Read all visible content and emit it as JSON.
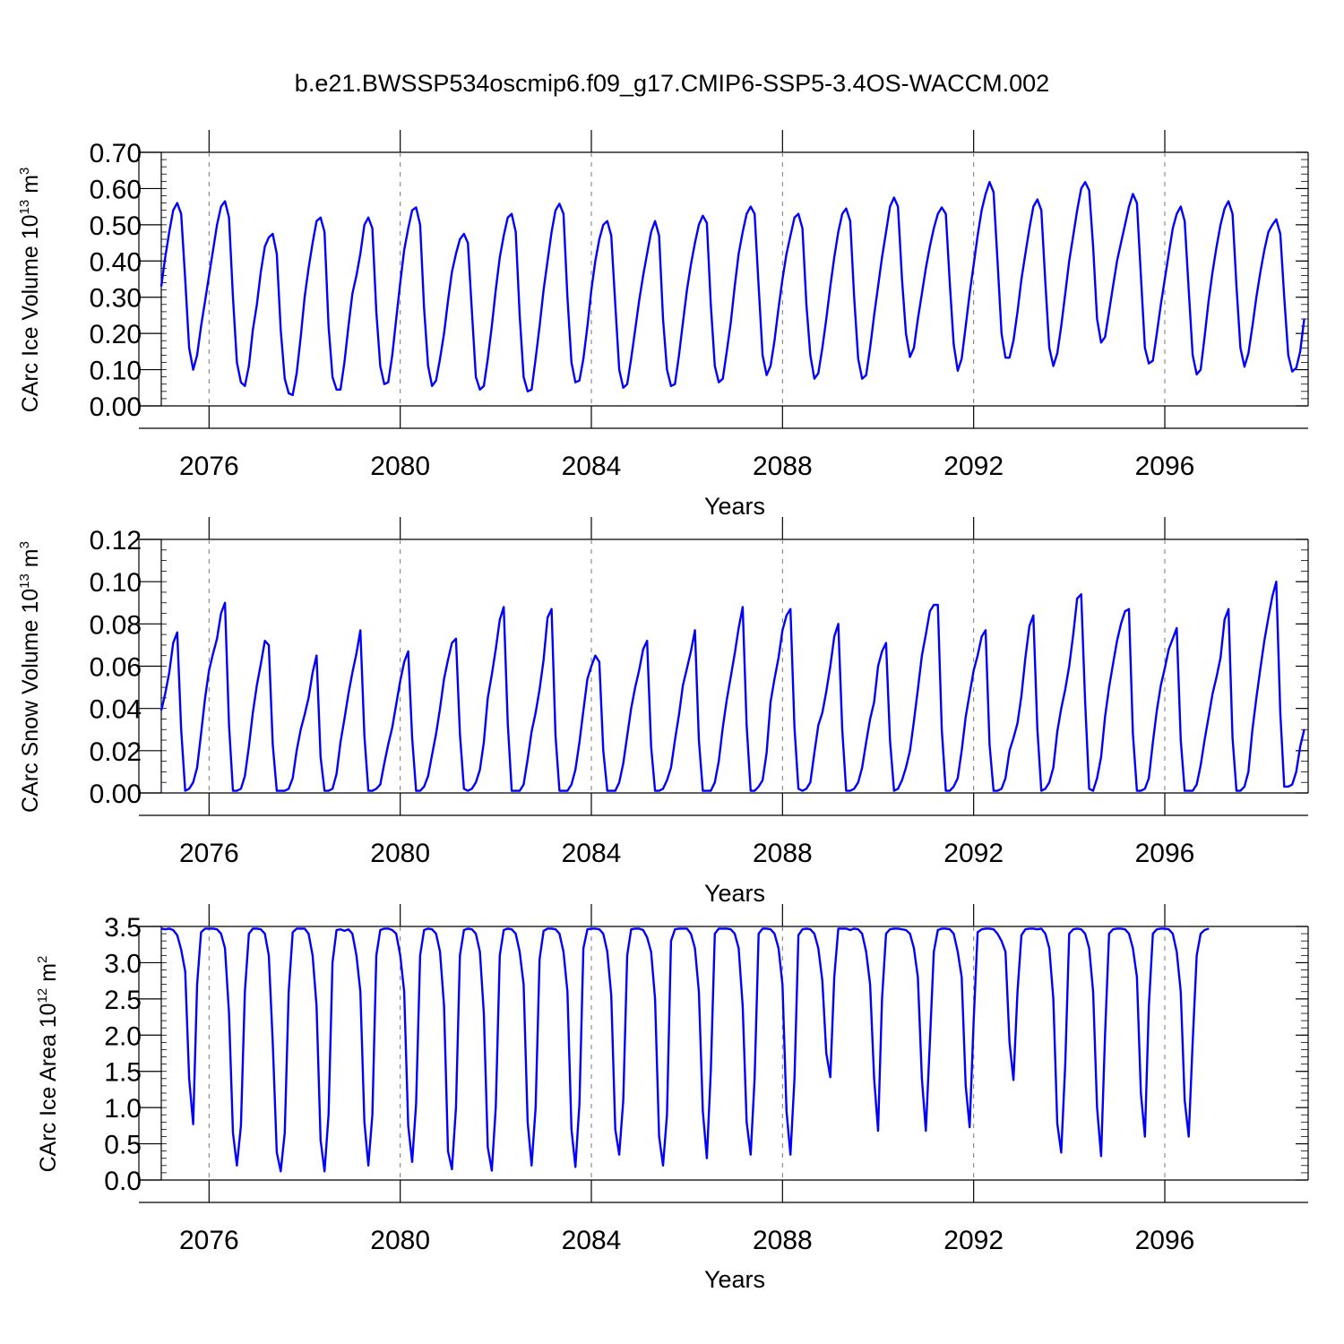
{
  "title": "b.e21.BWSSP534oscmip6.f09_g17.CMIP6-SSP5-3.4OS-WACCM.002",
  "chart_data": [
    {
      "type": "line",
      "ylabel": {
        "main": "CArc Ice Volume 10",
        "exp": "13",
        "unit": " m",
        "unit_exp": "3"
      },
      "xlabel": "Years",
      "xlim": [
        2075,
        2099
      ],
      "ylim": [
        0,
        0.7
      ],
      "x_ticks": [
        "2076",
        "2080",
        "2084",
        "2088",
        "2092",
        "2096"
      ],
      "y_ticks": [
        "0.00",
        "0.10",
        "0.20",
        "0.30",
        "0.40",
        "0.50",
        "0.60",
        "0.70"
      ],
      "x_tick_values": [
        2076,
        2080,
        2084,
        2088,
        2092,
        2096
      ],
      "y_tick_values": [
        0,
        0.1,
        0.2,
        0.3,
        0.4,
        0.5,
        0.6,
        0.7
      ],
      "minor_y_step": 0.02,
      "grid": "vertical dashed at major x ticks",
      "line_color": "#0000ff",
      "series": [
        {
          "x_start": 2075.0,
          "x_step": 0.0833333,
          "values": [
            0.33,
            0.41,
            0.48,
            0.54,
            0.56,
            0.53,
            0.35,
            0.16,
            0.1,
            0.14,
            0.22,
            0.29,
            0.36,
            0.43,
            0.5,
            0.55,
            0.565,
            0.52,
            0.3,
            0.12,
            0.065,
            0.055,
            0.11,
            0.21,
            0.28,
            0.37,
            0.44,
            0.465,
            0.475,
            0.42,
            0.21,
            0.075,
            0.035,
            0.03,
            0.09,
            0.19,
            0.3,
            0.38,
            0.45,
            0.51,
            0.52,
            0.48,
            0.22,
            0.08,
            0.045,
            0.045,
            0.12,
            0.22,
            0.31,
            0.36,
            0.42,
            0.5,
            0.52,
            0.49,
            0.26,
            0.11,
            0.06,
            0.065,
            0.14,
            0.24,
            0.34,
            0.43,
            0.49,
            0.54,
            0.548,
            0.5,
            0.27,
            0.11,
            0.055,
            0.07,
            0.13,
            0.2,
            0.29,
            0.37,
            0.42,
            0.46,
            0.475,
            0.45,
            0.26,
            0.08,
            0.045,
            0.055,
            0.13,
            0.22,
            0.32,
            0.41,
            0.47,
            0.52,
            0.53,
            0.48,
            0.25,
            0.08,
            0.04,
            0.045,
            0.13,
            0.22,
            0.32,
            0.4,
            0.48,
            0.54,
            0.558,
            0.53,
            0.3,
            0.12,
            0.065,
            0.07,
            0.13,
            0.22,
            0.32,
            0.4,
            0.46,
            0.5,
            0.51,
            0.47,
            0.28,
            0.1,
            0.05,
            0.06,
            0.13,
            0.21,
            0.29,
            0.36,
            0.42,
            0.48,
            0.51,
            0.47,
            0.24,
            0.1,
            0.055,
            0.06,
            0.14,
            0.23,
            0.32,
            0.39,
            0.45,
            0.5,
            0.525,
            0.505,
            0.28,
            0.11,
            0.065,
            0.075,
            0.15,
            0.23,
            0.33,
            0.42,
            0.48,
            0.53,
            0.55,
            0.53,
            0.33,
            0.14,
            0.085,
            0.11,
            0.18,
            0.27,
            0.35,
            0.42,
            0.47,
            0.52,
            0.53,
            0.49,
            0.28,
            0.14,
            0.075,
            0.09,
            0.16,
            0.24,
            0.33,
            0.41,
            0.48,
            0.53,
            0.545,
            0.51,
            0.3,
            0.13,
            0.075,
            0.085,
            0.16,
            0.25,
            0.33,
            0.41,
            0.48,
            0.55,
            0.575,
            0.55,
            0.35,
            0.2,
            0.135,
            0.16,
            0.24,
            0.31,
            0.38,
            0.44,
            0.49,
            0.53,
            0.548,
            0.53,
            0.34,
            0.17,
            0.097,
            0.13,
            0.22,
            0.31,
            0.39,
            0.47,
            0.54,
            0.585,
            0.618,
            0.59,
            0.4,
            0.2,
            0.133,
            0.133,
            0.18,
            0.26,
            0.35,
            0.42,
            0.49,
            0.55,
            0.57,
            0.54,
            0.34,
            0.16,
            0.11,
            0.145,
            0.22,
            0.31,
            0.4,
            0.47,
            0.54,
            0.6,
            0.618,
            0.595,
            0.44,
            0.24,
            0.175,
            0.19,
            0.26,
            0.33,
            0.4,
            0.45,
            0.5,
            0.55,
            0.585,
            0.56,
            0.36,
            0.16,
            0.117,
            0.125,
            0.2,
            0.28,
            0.35,
            0.42,
            0.49,
            0.53,
            0.55,
            0.51,
            0.32,
            0.14,
            0.087,
            0.1,
            0.19,
            0.29,
            0.37,
            0.44,
            0.5,
            0.545,
            0.565,
            0.53,
            0.33,
            0.16,
            0.108,
            0.145,
            0.22,
            0.3,
            0.37,
            0.43,
            0.48,
            0.5,
            0.515,
            0.475,
            0.3,
            0.14,
            0.095,
            0.105,
            0.15,
            0.24
          ]
        }
      ]
    },
    {
      "type": "line",
      "ylabel": {
        "main": "CArc Snow Volume 10",
        "exp": "13",
        "unit": " m",
        "unit_exp": "3"
      },
      "xlabel": "Years",
      "xlim": [
        2075,
        2099
      ],
      "ylim": [
        0,
        0.12
      ],
      "x_ticks": [
        "2076",
        "2080",
        "2084",
        "2088",
        "2092",
        "2096"
      ],
      "y_ticks": [
        "0.00",
        "0.02",
        "0.04",
        "0.06",
        "0.08",
        "0.10",
        "0.12"
      ],
      "x_tick_values": [
        2076,
        2080,
        2084,
        2088,
        2092,
        2096
      ],
      "y_tick_values": [
        0,
        0.02,
        0.04,
        0.06,
        0.08,
        0.1,
        0.12
      ],
      "minor_y_step": 0.005,
      "grid": "vertical dashed at major x ticks",
      "line_color": "#0000ff",
      "series": [
        {
          "x_start": 2075.0,
          "x_step": 0.0833333,
          "values": [
            0.039,
            0.047,
            0.057,
            0.071,
            0.076,
            0.03,
            0.001,
            0.002,
            0.005,
            0.012,
            0.028,
            0.045,
            0.058,
            0.066,
            0.073,
            0.085,
            0.09,
            0.032,
            0.001,
            0.001,
            0.002,
            0.008,
            0.022,
            0.038,
            0.051,
            0.061,
            0.072,
            0.07,
            0.023,
            0.001,
            0.001,
            0.001,
            0.002,
            0.007,
            0.02,
            0.03,
            0.037,
            0.045,
            0.057,
            0.065,
            0.017,
            0.001,
            0.001,
            0.002,
            0.009,
            0.024,
            0.035,
            0.047,
            0.057,
            0.066,
            0.077,
            0.027,
            0.001,
            0.001,
            0.002,
            0.004,
            0.014,
            0.023,
            0.031,
            0.042,
            0.053,
            0.062,
            0.067,
            0.026,
            0.001,
            0.001,
            0.003,
            0.008,
            0.018,
            0.028,
            0.04,
            0.054,
            0.063,
            0.071,
            0.073,
            0.028,
            0.002,
            0.001,
            0.002,
            0.005,
            0.011,
            0.024,
            0.045,
            0.056,
            0.068,
            0.082,
            0.088,
            0.033,
            0.001,
            0.001,
            0.001,
            0.004,
            0.016,
            0.029,
            0.038,
            0.049,
            0.063,
            0.083,
            0.087,
            0.027,
            0.001,
            0.001,
            0.001,
            0.004,
            0.011,
            0.024,
            0.039,
            0.054,
            0.06,
            0.065,
            0.062,
            0.02,
            0.001,
            0.001,
            0.001,
            0.005,
            0.014,
            0.027,
            0.04,
            0.05,
            0.058,
            0.068,
            0.072,
            0.022,
            0.001,
            0.001,
            0.002,
            0.006,
            0.012,
            0.025,
            0.037,
            0.051,
            0.059,
            0.067,
            0.077,
            0.025,
            0.001,
            0.001,
            0.001,
            0.005,
            0.015,
            0.031,
            0.044,
            0.055,
            0.066,
            0.078,
            0.088,
            0.032,
            0.001,
            0.001,
            0.003,
            0.006,
            0.019,
            0.043,
            0.054,
            0.064,
            0.077,
            0.084,
            0.087,
            0.031,
            0.002,
            0.001,
            0.002,
            0.005,
            0.019,
            0.032,
            0.038,
            0.048,
            0.06,
            0.074,
            0.08,
            0.03,
            0.001,
            0.001,
            0.002,
            0.005,
            0.012,
            0.024,
            0.035,
            0.043,
            0.06,
            0.067,
            0.071,
            0.025,
            0.001,
            0.002,
            0.006,
            0.012,
            0.02,
            0.034,
            0.049,
            0.065,
            0.075,
            0.086,
            0.089,
            0.089,
            0.03,
            0.001,
            0.001,
            0.003,
            0.007,
            0.02,
            0.036,
            0.047,
            0.058,
            0.065,
            0.074,
            0.077,
            0.023,
            0.001,
            0.001,
            0.002,
            0.007,
            0.02,
            0.026,
            0.033,
            0.046,
            0.064,
            0.079,
            0.084,
            0.03,
            0.001,
            0.002,
            0.005,
            0.012,
            0.029,
            0.04,
            0.049,
            0.06,
            0.075,
            0.092,
            0.094,
            0.043,
            0.002,
            0.001,
            0.007,
            0.017,
            0.036,
            0.05,
            0.061,
            0.072,
            0.08,
            0.086,
            0.087,
            0.028,
            0.001,
            0.001,
            0.002,
            0.007,
            0.024,
            0.039,
            0.051,
            0.059,
            0.068,
            0.073,
            0.078,
            0.025,
            0.001,
            0.001,
            0.001,
            0.004,
            0.013,
            0.025,
            0.036,
            0.047,
            0.055,
            0.064,
            0.082,
            0.087,
            0.026,
            0.001,
            0.001,
            0.003,
            0.01,
            0.03,
            0.045,
            0.059,
            0.072,
            0.083,
            0.093,
            0.1,
            0.038,
            0.003,
            0.003,
            0.004,
            0.01,
            0.022,
            0.03
          ]
        }
      ]
    },
    {
      "type": "line",
      "ylabel": {
        "main": "CArc Ice Area 10",
        "exp": "12",
        "unit": " m",
        "unit_exp": "2"
      },
      "xlabel": "Years",
      "xlim": [
        2075,
        2099
      ],
      "ylim": [
        0,
        3.5
      ],
      "x_ticks": [
        "2076",
        "2080",
        "2084",
        "2088",
        "2092",
        "2096"
      ],
      "y_ticks": [
        "0.0",
        "0.5",
        "1.0",
        "1.5",
        "2.0",
        "2.5",
        "3.0",
        "3.5"
      ],
      "x_tick_values": [
        2076,
        2080,
        2084,
        2088,
        2092,
        2096
      ],
      "y_tick_values": [
        0,
        0.5,
        1.0,
        1.5,
        2.0,
        2.5,
        3.0,
        3.5
      ],
      "minor_y_step": 0.1,
      "grid": "vertical dashed at major x ticks",
      "line_color": "#0000ff",
      "series": [
        {
          "x_start": 2075.0,
          "x_step": 0.0833333,
          "values": [
            3.47,
            3.46,
            3.47,
            3.45,
            3.38,
            3.18,
            2.88,
            1.4,
            0.77,
            2.7,
            3.42,
            3.47,
            3.47,
            3.47,
            3.46,
            3.4,
            3.2,
            2.3,
            0.65,
            0.2,
            0.75,
            2.6,
            3.4,
            3.47,
            3.47,
            3.46,
            3.4,
            3.1,
            1.9,
            0.38,
            0.12,
            0.65,
            2.6,
            3.42,
            3.47,
            3.47,
            3.47,
            3.4,
            3.1,
            2.4,
            0.55,
            0.12,
            0.9,
            3.0,
            3.45,
            3.46,
            3.44,
            3.46,
            3.4,
            3.1,
            2.6,
            0.8,
            0.2,
            0.9,
            3.1,
            3.45,
            3.47,
            3.47,
            3.45,
            3.4,
            3.1,
            2.6,
            0.75,
            0.25,
            1.05,
            3.1,
            3.45,
            3.47,
            3.46,
            3.4,
            3.15,
            2.4,
            0.4,
            0.15,
            1.0,
            3.1,
            3.45,
            3.47,
            3.46,
            3.4,
            3.15,
            2.3,
            0.45,
            0.13,
            1.0,
            3.1,
            3.45,
            3.47,
            3.46,
            3.4,
            3.15,
            2.7,
            0.8,
            0.2,
            1.0,
            3.05,
            3.44,
            3.47,
            3.47,
            3.46,
            3.4,
            3.15,
            2.6,
            0.7,
            0.18,
            1.05,
            3.2,
            3.46,
            3.47,
            3.47,
            3.46,
            3.4,
            3.15,
            2.55,
            0.7,
            0.35,
            1.1,
            3.1,
            3.46,
            3.47,
            3.47,
            3.45,
            3.35,
            3.15,
            2.5,
            0.6,
            0.2,
            0.9,
            3.3,
            3.46,
            3.47,
            3.47,
            3.47,
            3.4,
            3.2,
            2.6,
            0.95,
            0.3,
            1.5,
            3.4,
            3.47,
            3.47,
            3.47,
            3.46,
            3.4,
            3.2,
            2.4,
            0.8,
            0.35,
            1.4,
            3.4,
            3.47,
            3.47,
            3.46,
            3.4,
            3.2,
            2.7,
            0.95,
            0.35,
            1.4,
            3.38,
            3.46,
            3.47,
            3.46,
            3.4,
            3.2,
            2.75,
            1.75,
            1.42,
            2.8,
            3.47,
            3.47,
            3.47,
            3.45,
            3.47,
            3.46,
            3.4,
            3.15,
            2.7,
            1.4,
            0.68,
            2.5,
            3.4,
            3.46,
            3.47,
            3.47,
            3.46,
            3.45,
            3.4,
            3.2,
            2.8,
            1.4,
            0.68,
            1.9,
            3.15,
            3.45,
            3.47,
            3.47,
            3.46,
            3.4,
            3.15,
            2.8,
            1.3,
            0.73,
            2.2,
            3.42,
            3.46,
            3.47,
            3.47,
            3.46,
            3.4,
            3.3,
            3.15,
            1.9,
            1.38,
            2.6,
            3.38,
            3.46,
            3.47,
            3.47,
            3.46,
            3.47,
            3.4,
            3.2,
            2.5,
            0.78,
            0.38,
            1.6,
            3.4,
            3.46,
            3.47,
            3.46,
            3.4,
            3.2,
            2.6,
            1.0,
            0.33,
            2.0,
            3.4,
            3.46,
            3.47,
            3.47,
            3.46,
            3.4,
            3.2,
            2.8,
            1.2,
            0.6,
            2.4,
            3.4,
            3.46,
            3.47,
            3.47,
            3.46,
            3.4,
            3.15,
            2.6,
            1.1,
            0.6,
            1.9,
            3.1,
            3.4,
            3.45,
            3.47
          ]
        }
      ]
    }
  ]
}
